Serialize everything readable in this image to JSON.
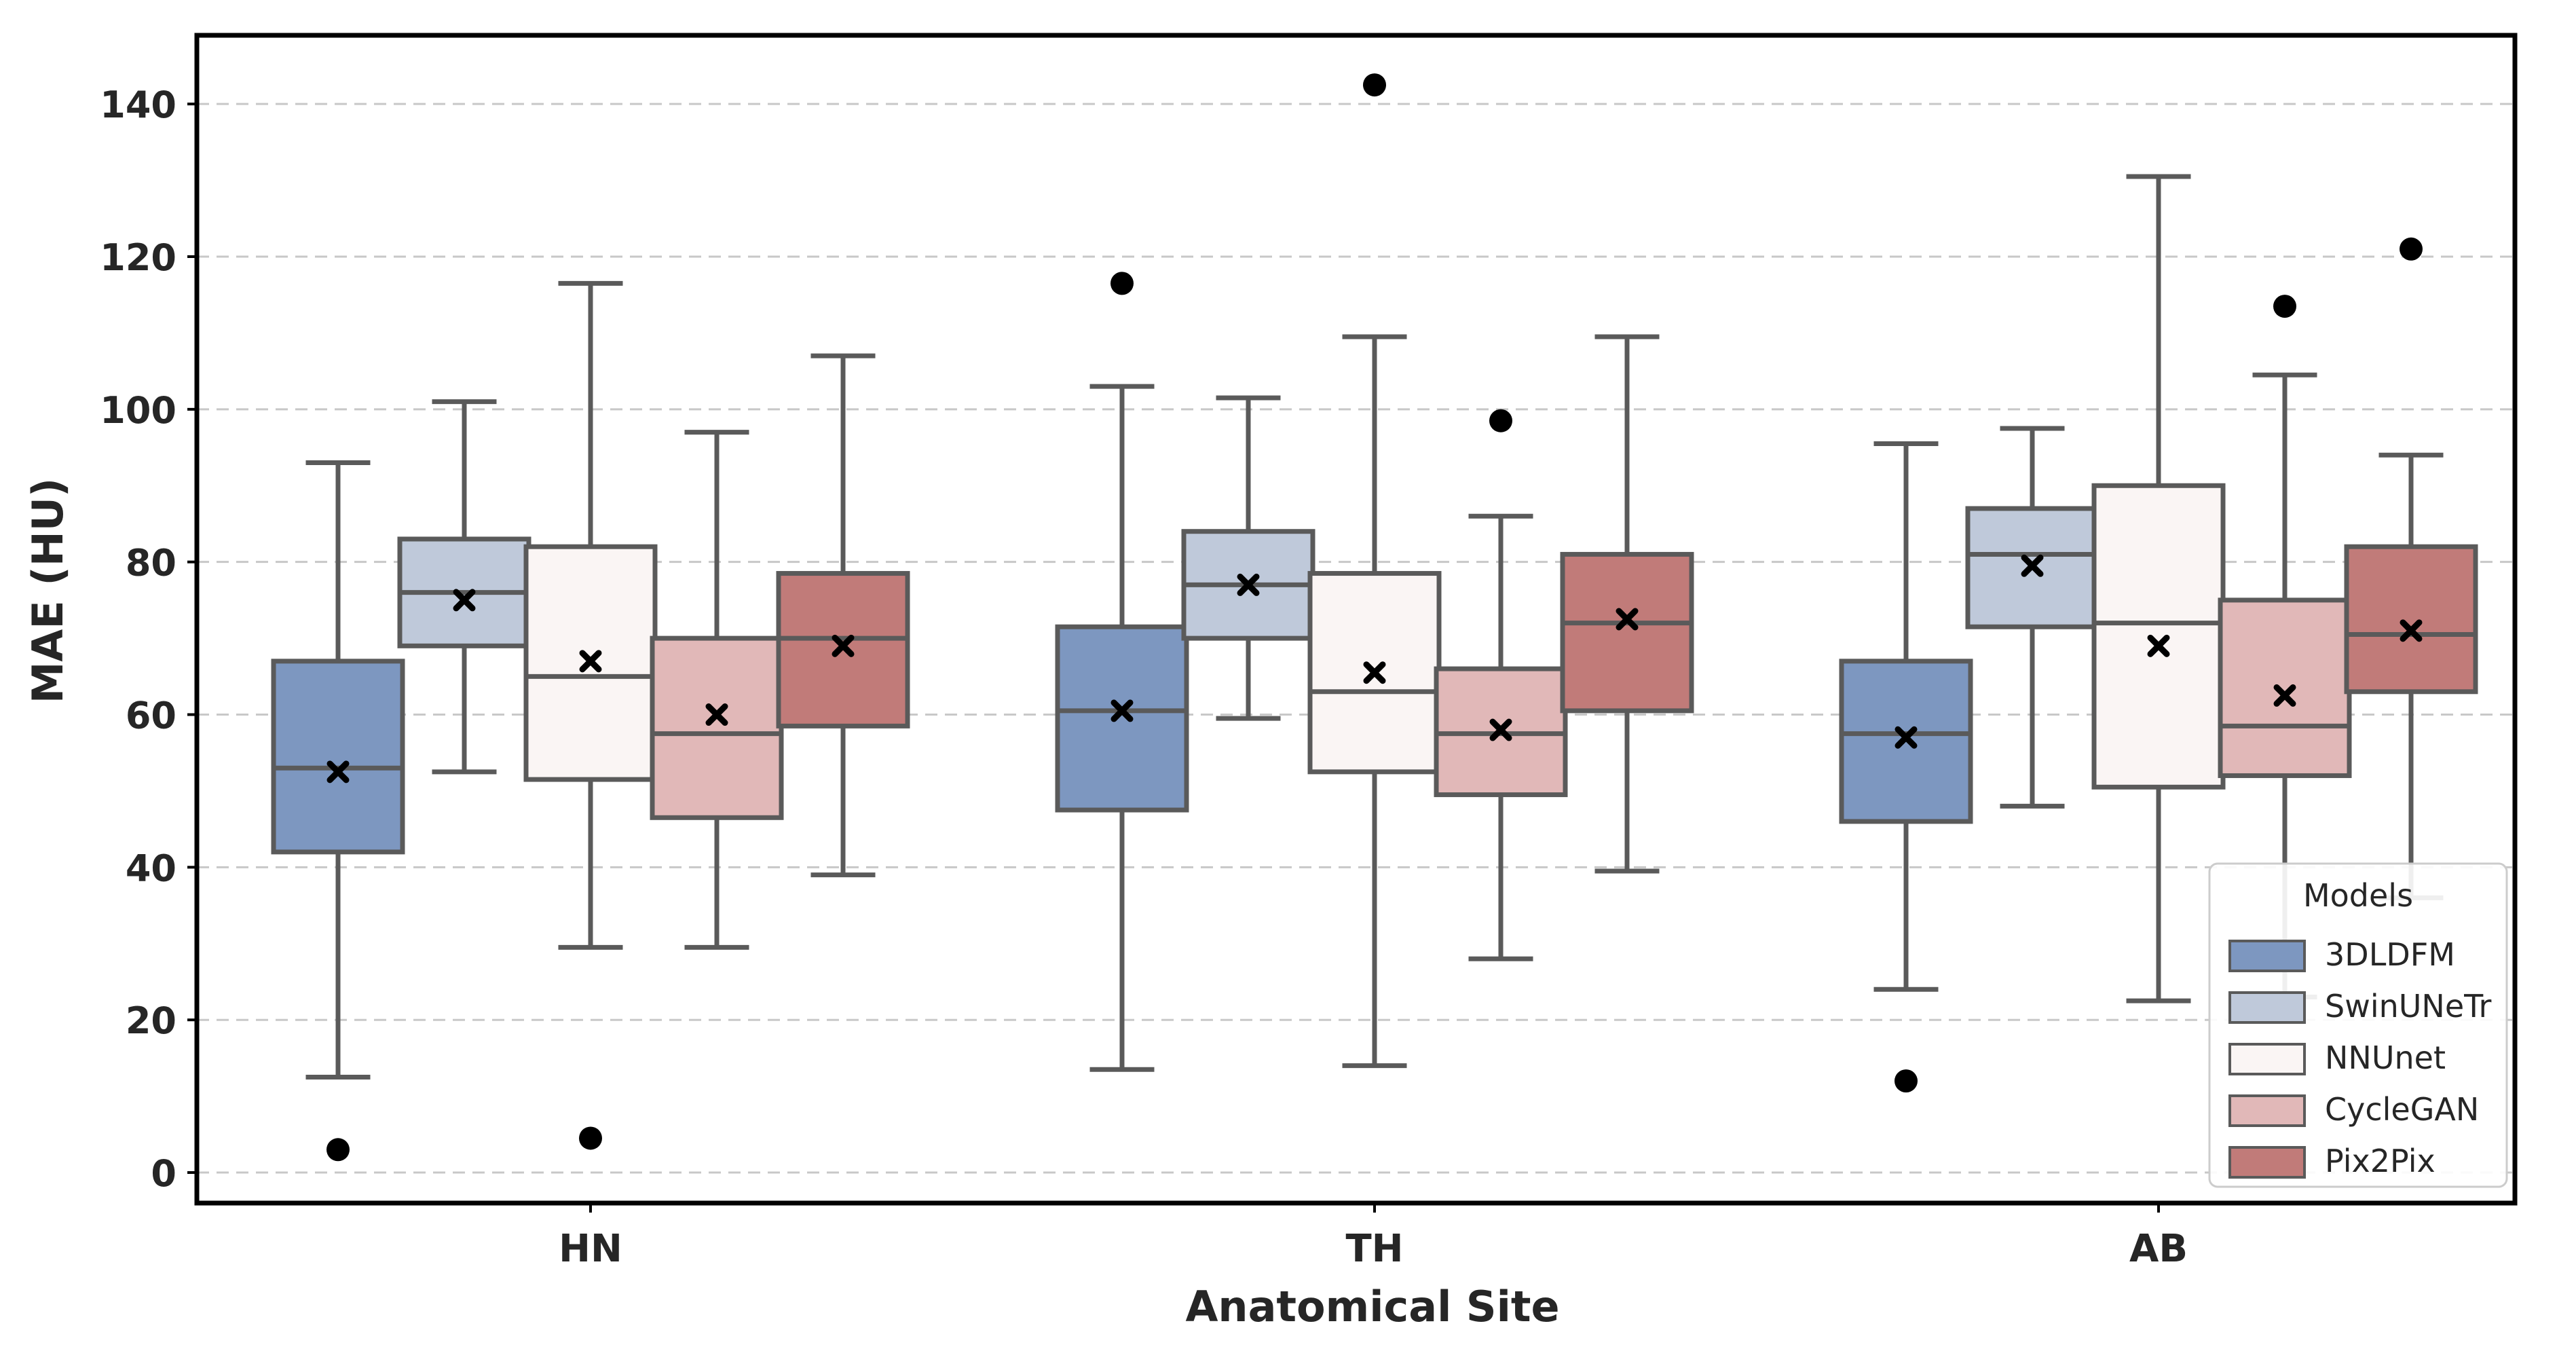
{
  "chart_data": {
    "type": "box",
    "xlabel": "Anatomical Site",
    "ylabel": "MAE  (HU)",
    "ylim": [
      -4,
      149
    ],
    "yticks": [
      0,
      20,
      40,
      60,
      80,
      100,
      120,
      140
    ],
    "grid": "y-dashed",
    "legend": {
      "title": "Models",
      "placement": "lower-right"
    },
    "categories": [
      "HN",
      "TH",
      "AB"
    ],
    "series": [
      {
        "name": "3DLDFM",
        "color": "#7d97c0",
        "boxes": [
          {
            "whisker_low": 12.5,
            "q1": 42,
            "median": 53,
            "q3": 67,
            "whisker_high": 93,
            "mean": 52.5,
            "outliers": [
              3
            ]
          },
          {
            "whisker_low": 13.5,
            "q1": 47.5,
            "median": 60.5,
            "q3": 71.5,
            "whisker_high": 103,
            "mean": 60.5,
            "outliers": [
              116.5
            ]
          },
          {
            "whisker_low": 24,
            "q1": 46,
            "median": 57.5,
            "q3": 67,
            "whisker_high": 95.5,
            "mean": 57,
            "outliers": [
              12
            ]
          }
        ]
      },
      {
        "name": "SwinUNeTr",
        "color": "#bfc9da",
        "boxes": [
          {
            "whisker_low": 52.5,
            "q1": 69,
            "median": 76,
            "q3": 83,
            "whisker_high": 101,
            "mean": 75,
            "outliers": []
          },
          {
            "whisker_low": 59.5,
            "q1": 70,
            "median": 77,
            "q3": 84,
            "whisker_high": 101.5,
            "mean": 77,
            "outliers": []
          },
          {
            "whisker_low": 48,
            "q1": 71.5,
            "median": 81,
            "q3": 87,
            "whisker_high": 97.5,
            "mean": 79.5,
            "outliers": []
          }
        ]
      },
      {
        "name": "NNUnet",
        "color": "#faf5f4",
        "boxes": [
          {
            "whisker_low": 29.5,
            "q1": 51.5,
            "median": 65,
            "q3": 82,
            "whisker_high": 116.5,
            "mean": 67,
            "outliers": [
              4.5
            ]
          },
          {
            "whisker_low": 14,
            "q1": 52.5,
            "median": 63,
            "q3": 78.5,
            "whisker_high": 109.5,
            "mean": 65.5,
            "outliers": [
              142.5
            ]
          },
          {
            "whisker_low": 22.5,
            "q1": 50.5,
            "median": 72,
            "q3": 90,
            "whisker_high": 130.5,
            "mean": 69,
            "outliers": []
          }
        ]
      },
      {
        "name": "CycleGAN",
        "color": "#e1b8b8",
        "boxes": [
          {
            "whisker_low": 29.5,
            "q1": 46.5,
            "median": 57.5,
            "q3": 70,
            "whisker_high": 97,
            "mean": 60,
            "outliers": []
          },
          {
            "whisker_low": 28,
            "q1": 49.5,
            "median": 57.5,
            "q3": 66,
            "whisker_high": 86,
            "mean": 58,
            "outliers": [
              98.5
            ]
          },
          {
            "whisker_low": 23,
            "q1": 52,
            "median": 58.5,
            "q3": 75,
            "whisker_high": 104.5,
            "mean": 62.5,
            "outliers": [
              113.5
            ]
          }
        ]
      },
      {
        "name": "Pix2Pix",
        "color": "#c17b79",
        "boxes": [
          {
            "whisker_low": 39,
            "q1": 58.5,
            "median": 70,
            "q3": 78.5,
            "whisker_high": 107,
            "mean": 69,
            "outliers": []
          },
          {
            "whisker_low": 39.5,
            "q1": 60.5,
            "median": 72,
            "q3": 81,
            "whisker_high": 109.5,
            "mean": 72.5,
            "outliers": []
          },
          {
            "whisker_low": 36,
            "q1": 63,
            "median": 70.5,
            "q3": 82,
            "whisker_high": 94,
            "mean": 71,
            "outliers": [
              121
            ]
          }
        ]
      }
    ]
  }
}
